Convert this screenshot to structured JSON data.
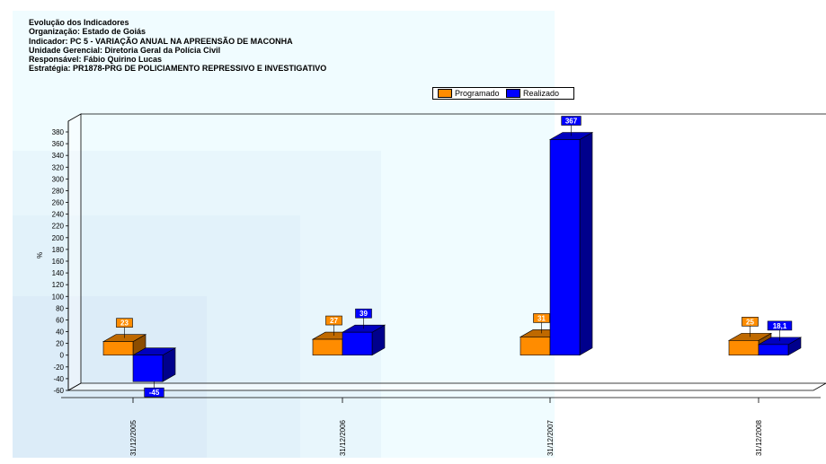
{
  "header": {
    "line1": "Evolução dos Indicadores",
    "line2": "Organização: Estado de Goiás",
    "line3": "Indicador: PC 5 - VARIAÇÃO ANUAL NA APREENSÃO DE MACONHA",
    "line4": "Unidade Gerencial: Diretoria Geral da Polícia Civil",
    "line5": "Responsável: Fábio Quirino Lucas",
    "line6": "Estratégia: PR1878-PRG DE POLICIAMENTO REPRESSIVO E INVESTIGATIVO"
  },
  "colors": {
    "programado": "#ff8c00",
    "realizado": "#0000ff",
    "panel": "#f0fcff"
  },
  "chart_data": {
    "type": "bar",
    "categories": [
      "31/12/2005",
      "31/12/2006",
      "31/12/2007",
      "31/12/2008"
    ],
    "series": [
      {
        "name": "Programado",
        "values": [
          23,
          27,
          31,
          25
        ],
        "labels": [
          "23",
          "27",
          "31",
          "25"
        ]
      },
      {
        "name": "Realizado",
        "values": [
          -45,
          39,
          367,
          18.1
        ],
        "labels": [
          "-45",
          "39",
          "367",
          "18,1"
        ]
      }
    ],
    "ylabel": "%",
    "ylim": [
      -60,
      380
    ],
    "yticks": [
      380,
      360,
      340,
      320,
      300,
      280,
      260,
      240,
      220,
      200,
      180,
      160,
      140,
      120,
      100,
      80,
      60,
      40,
      20,
      0,
      -20,
      -40,
      -60
    ],
    "legend_position": "top-right",
    "grid": false
  }
}
